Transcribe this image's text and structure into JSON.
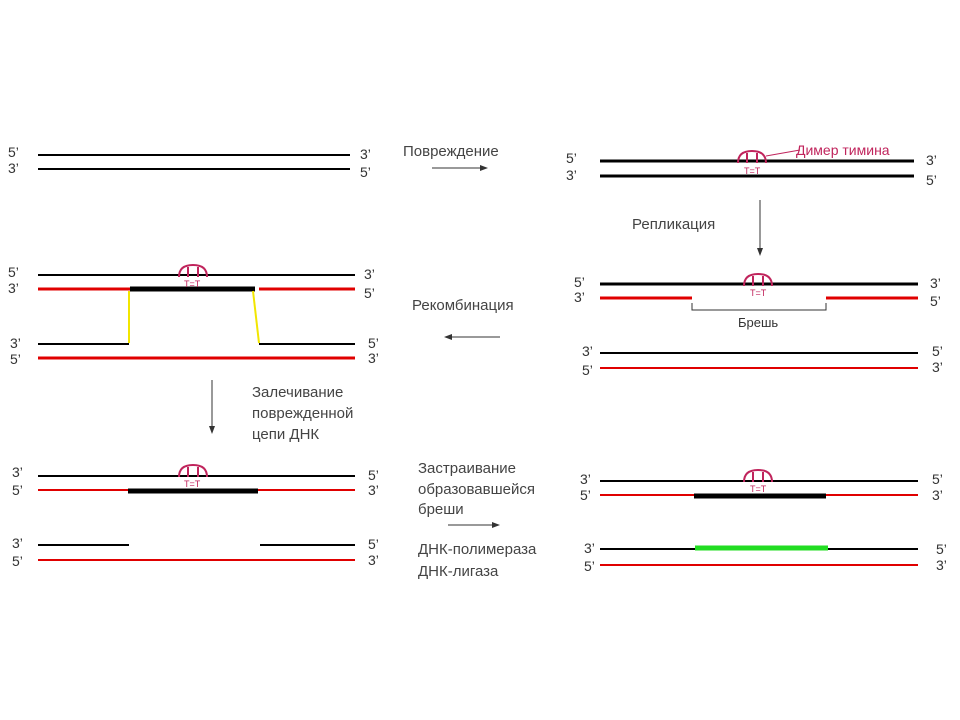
{
  "labels": {
    "end5": "5’",
    "end3": "3’",
    "damage": "Повреждение",
    "thymine_dimer": "Димер тимина",
    "replication": "Репликация",
    "recombination": "Рекомбинация",
    "gap": "Брешь",
    "repair_line1": "Залечивание",
    "repair_line2": "поврежденной",
    "repair_line3": "цепи ДНК",
    "fill_line1": "Застраивание",
    "fill_line2": "образовавшейся",
    "fill_line3": "бреши",
    "polymerase": "ДНК-полимераза",
    "ligase": "ДНК-лигаза",
    "dimer_mark": "T=T"
  },
  "colors": {
    "parental_strand": "#000000",
    "new_strand": "#e00000",
    "dimer": "#c0245c",
    "crossover": "#f2e600",
    "synthesis": "#22dd22"
  }
}
